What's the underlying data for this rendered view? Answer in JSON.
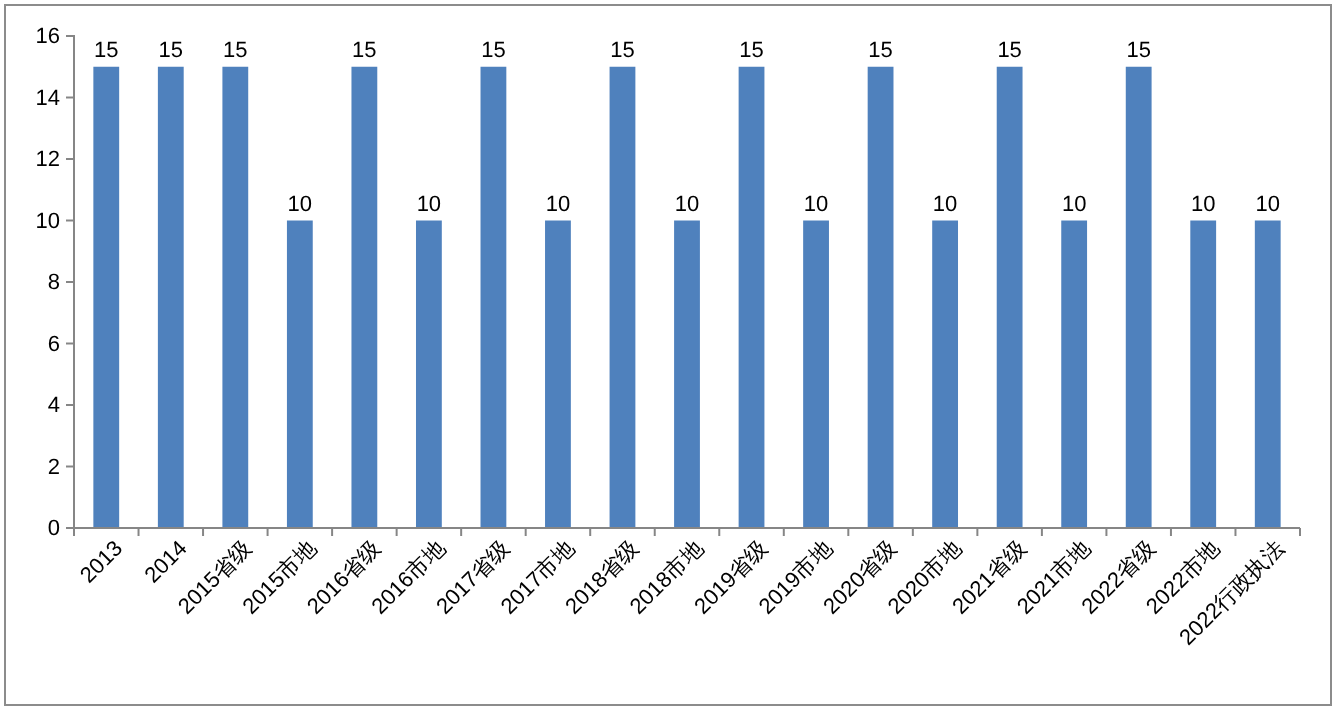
{
  "chart_data": {
    "type": "bar",
    "categories": [
      "2013",
      "2014",
      "2015省级",
      "2015市地",
      "2016省级",
      "2016市地",
      "2017省级",
      "2017市地",
      "2018省级",
      "2018市地",
      "2019省级",
      "2019市地",
      "2020省级",
      "2020市地",
      "2021省级",
      "2021市地",
      "2022省级",
      "2022市地",
      "2022行政执法"
    ],
    "values": [
      15,
      15,
      15,
      10,
      15,
      10,
      15,
      10,
      15,
      10,
      15,
      10,
      15,
      10,
      15,
      10,
      15,
      10,
      10
    ],
    "color": "#4f81bd",
    "ylim": [
      0,
      16
    ],
    "yticks": [
      0,
      2,
      4,
      6,
      8,
      10,
      12,
      14,
      16
    ],
    "data_labels": true
  }
}
